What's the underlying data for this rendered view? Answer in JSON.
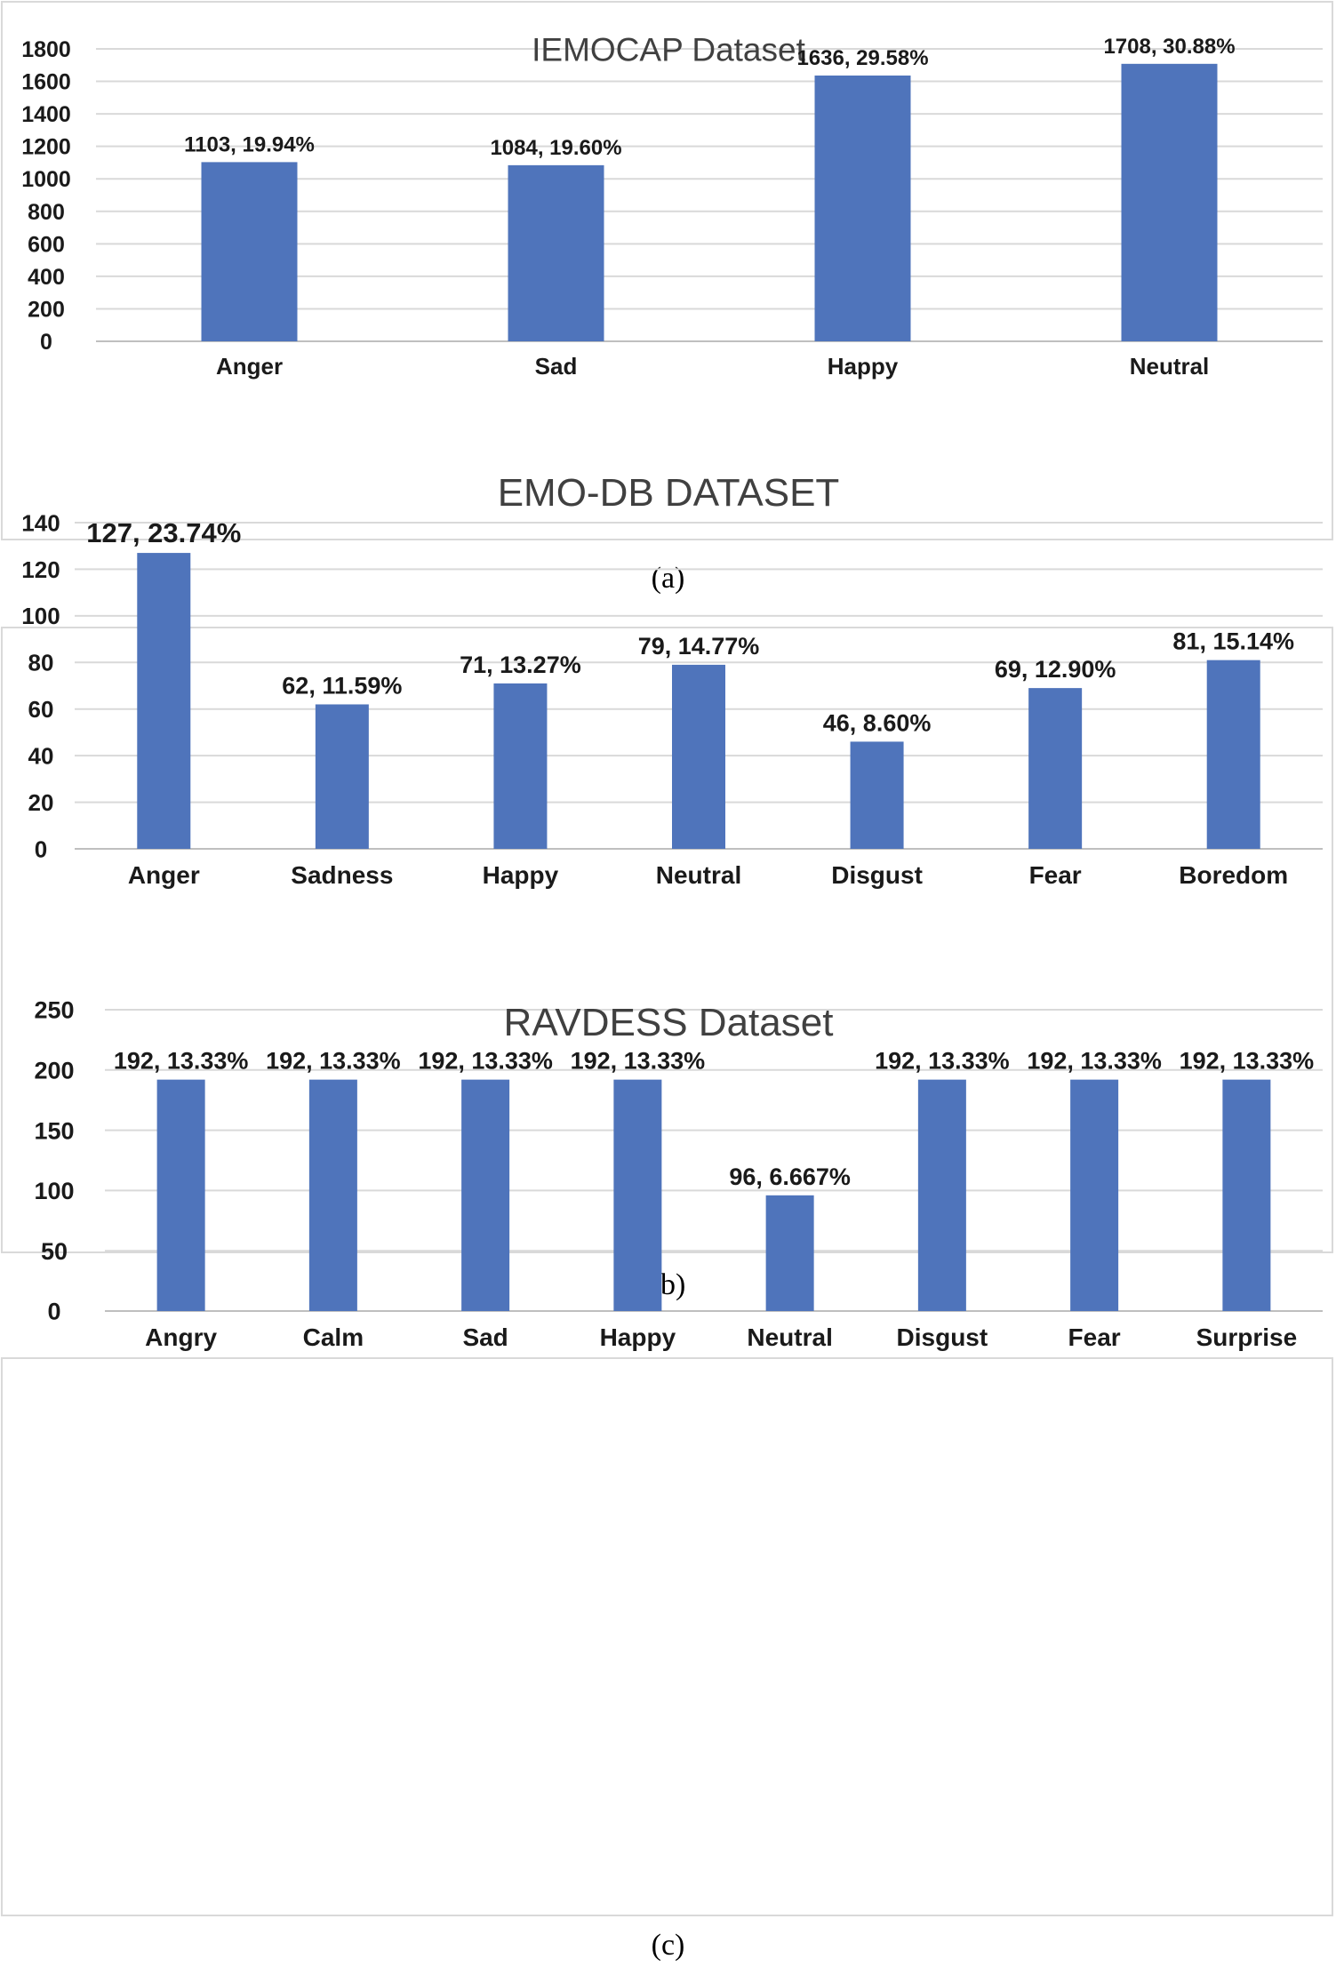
{
  "chart_data": [
    {
      "type": "bar",
      "title": "IEMOCAP Dataset",
      "categories": [
        "Anger",
        "Sad",
        "Happy",
        "Neutral"
      ],
      "values": [
        1103,
        1084,
        1636,
        1708
      ],
      "data_labels": [
        "1103, 19.94%",
        "1084, 19.60%",
        "1636, 29.58%",
        "1708, 30.88%"
      ],
      "yticks": [
        "0",
        "200",
        "400",
        "600",
        "800",
        "1000",
        "1200",
        "1400",
        "1600",
        "1800"
      ],
      "ylim": [
        0,
        1800
      ],
      "xlabel": "",
      "ylabel": "",
      "grid": true,
      "bar_color": "#4f74bb",
      "caption": "(a)"
    },
    {
      "type": "bar",
      "title": "EMO-DB DATASET",
      "categories": [
        "Anger",
        "Sadness",
        "Happy",
        "Neutral",
        "Disgust",
        "Fear",
        "Boredom"
      ],
      "values": [
        127,
        62,
        71,
        79,
        46,
        69,
        81
      ],
      "data_labels": [
        "127, 23.74%",
        "62, 11.59%",
        "71, 13.27%",
        "79, 14.77%",
        "46, 8.60%",
        "69, 12.90%",
        "81, 15.14%"
      ],
      "yticks": [
        "0",
        "20",
        "40",
        "60",
        "80",
        "100",
        "120",
        "140"
      ],
      "ylim": [
        0,
        140
      ],
      "xlabel": "",
      "ylabel": "",
      "grid": true,
      "bar_color": "#4f74bb",
      "caption": "(b)"
    },
    {
      "type": "bar",
      "title": "RAVDESS Dataset",
      "categories": [
        "Angry",
        "Calm",
        "Sad",
        "Happy",
        "Neutral",
        "Disgust",
        "Fear",
        "Surprise"
      ],
      "values": [
        192,
        192,
        192,
        192,
        96,
        192,
        192,
        192
      ],
      "data_labels": [
        "192, 13.33%",
        "192, 13.33%",
        "192, 13.33%",
        "192, 13.33%",
        "96, 6.667%",
        "192, 13.33%",
        "192, 13.33%",
        "192, 13.33%"
      ],
      "yticks": [
        "0",
        "50",
        "100",
        "150",
        "200",
        "250"
      ],
      "ylim": [
        0,
        250
      ],
      "xlabel": "",
      "ylabel": "",
      "grid": true,
      "bar_color": "#4f74bb",
      "caption": "(c)"
    }
  ]
}
